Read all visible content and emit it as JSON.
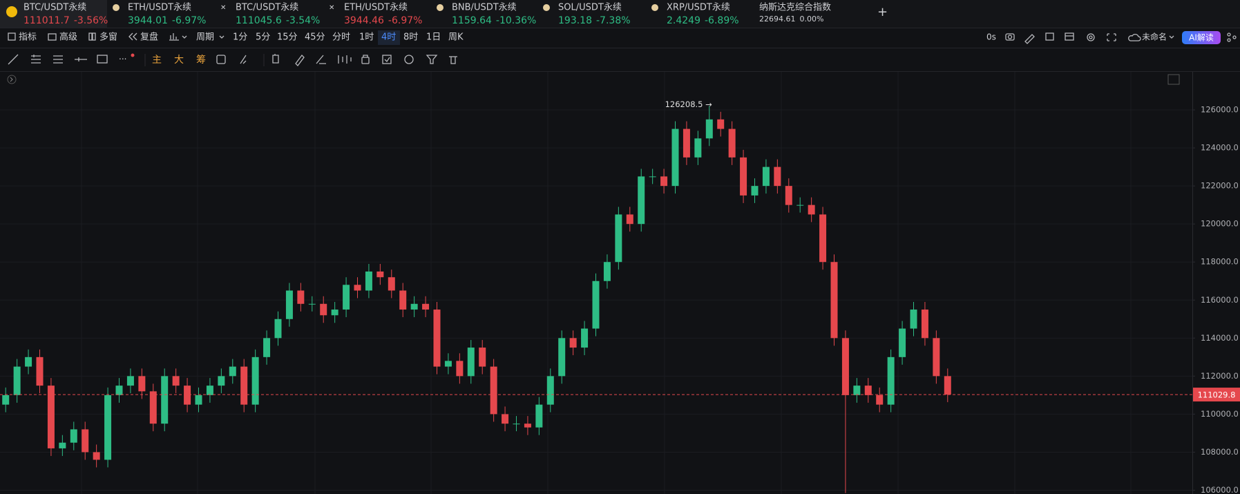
{
  "tabs": [
    {
      "symbol": "BTC/USDT永续",
      "price": "111011.7",
      "change": "-3.56%",
      "color": "#e5484d"
    },
    {
      "symbol": "ETH/USDT永续",
      "price": "3944.01",
      "change": "-6.97%",
      "color": "#2ebd85"
    },
    {
      "symbol": "BTC/USDT永续",
      "price": "111045.6",
      "change": "-3.54%",
      "color": "#2ebd85"
    },
    {
      "symbol": "ETH/USDT永续",
      "price": "3944.46",
      "change": "-6.97%",
      "color": "#e5484d"
    },
    {
      "symbol": "BNB/USDT永续",
      "price": "1159.64",
      "change": "-10.36%",
      "color": "#2ebd85"
    },
    {
      "symbol": "SOL/USDT永续",
      "price": "193.18",
      "change": "-7.38%",
      "color": "#2ebd85"
    },
    {
      "symbol": "XRP/USDT永续",
      "price": "2.4249",
      "change": "-6.89%",
      "color": "#2ebd85"
    },
    {
      "symbol": "纳斯达克综合指数",
      "price": "22694.61",
      "change": "0.00%",
      "color": "#d0d1d5"
    }
  ],
  "toolbar": {
    "items": [
      "指标",
      "高级",
      "多窗",
      "复盘",
      "周期"
    ],
    "intervals": [
      "1分",
      "5分",
      "15分",
      "45分",
      "分时",
      "1时",
      "4时",
      "8时",
      "1日",
      "周K"
    ],
    "active_interval": 6,
    "timer": "0s",
    "layout_name": "未命名",
    "ai_button": "AI解读"
  },
  "draw_tools": [
    "主",
    "大",
    "筹"
  ],
  "chart_data": {
    "type": "candlestick",
    "up_color": "#2ebd85",
    "down_color": "#e5484d",
    "open": [
      110500,
      111000,
      112500,
      113000,
      111500,
      108200,
      108500,
      109200,
      108000,
      107600,
      111000,
      111500,
      112000,
      111200,
      109500,
      112000,
      111500,
      110500,
      111000,
      111500,
      112000,
      112500,
      110500,
      113000,
      114000,
      115000,
      116500,
      115800,
      115800,
      115200,
      115500,
      116800,
      116500,
      117500,
      117200,
      116500,
      115500,
      115800,
      115500,
      112500,
      112800,
      112000,
      113500,
      112500,
      110000,
      109500,
      109500,
      109300,
      110500,
      112000,
      114000,
      113500,
      114500,
      117000,
      118000,
      120500,
      120000,
      122500,
      122500,
      122000,
      125000,
      123500,
      124500,
      125500,
      125000,
      123500,
      121500,
      122000,
      123000,
      122000,
      121000,
      121000,
      120500,
      118000,
      114000,
      111000,
      111500,
      111000,
      110500,
      113000,
      114500,
      115500,
      114000,
      112000
    ],
    "high": [
      111400,
      112900,
      113400,
      113400,
      111900,
      108900,
      109600,
      109600,
      108400,
      111400,
      111900,
      112400,
      112400,
      111600,
      112400,
      112400,
      111900,
      111400,
      111900,
      112400,
      112900,
      112900,
      113400,
      114400,
      115400,
      116900,
      116900,
      116200,
      116200,
      115900,
      117200,
      117200,
      117900,
      117900,
      117600,
      116900,
      116200,
      116200,
      115900,
      113200,
      113200,
      113900,
      113900,
      112900,
      110400,
      109900,
      109900,
      110900,
      112400,
      114400,
      114400,
      114900,
      117400,
      118400,
      120900,
      120900,
      122900,
      122900,
      122900,
      125400,
      125400,
      124900,
      126208.5,
      125900,
      125400,
      123900,
      122400,
      123400,
      123400,
      122400,
      121400,
      121400,
      120900,
      118400,
      114400,
      111900,
      111900,
      111400,
      113400,
      114900,
      115900,
      115900,
      114400,
      112400
    ],
    "low": [
      110100,
      110600,
      112100,
      111100,
      107800,
      107800,
      108100,
      107600,
      107200,
      107200,
      110600,
      111100,
      110800,
      109100,
      109100,
      111100,
      110100,
      110100,
      110600,
      111100,
      111600,
      110100,
      110100,
      112600,
      113600,
      114600,
      115400,
      115400,
      114800,
      114800,
      115100,
      116100,
      116100,
      116800,
      116100,
      115100,
      115100,
      115100,
      112100,
      112100,
      111600,
      111600,
      112100,
      109600,
      109100,
      109100,
      108900,
      108900,
      110100,
      111600,
      113100,
      113100,
      114100,
      116600,
      117600,
      119600,
      119600,
      122100,
      121600,
      121600,
      123100,
      123100,
      124100,
      124600,
      123100,
      121100,
      121100,
      121600,
      121600,
      120600,
      120600,
      120100,
      117600,
      113600,
      105850,
      110600,
      110600,
      110100,
      110100,
      112600,
      114100,
      113600,
      111600,
      110629.8
    ],
    "close": [
      111000,
      112500,
      113000,
      111500,
      108200,
      108500,
      109200,
      108000,
      107600,
      111000,
      111500,
      112000,
      111200,
      109500,
      112000,
      111500,
      110500,
      111000,
      111500,
      112000,
      112500,
      110500,
      113000,
      114000,
      115000,
      116500,
      115800,
      115800,
      115200,
      115500,
      116800,
      116500,
      117500,
      117200,
      116500,
      115500,
      115800,
      115500,
      112500,
      112800,
      112000,
      113500,
      112500,
      110000,
      109500,
      109500,
      109300,
      110500,
      112000,
      114000,
      113500,
      114500,
      117000,
      118000,
      120500,
      120000,
      122500,
      122500,
      122000,
      125000,
      123500,
      124500,
      125500,
      125000,
      123500,
      121500,
      122000,
      123000,
      122000,
      121000,
      121000,
      120500,
      118000,
      114000,
      111000,
      111500,
      111000,
      110500,
      113000,
      114500,
      115500,
      114000,
      112000,
      111029.8
    ],
    "ylim": [
      105800,
      128000
    ],
    "yticks": [
      {
        "value": 106000,
        "label": "106000.0"
      },
      {
        "value": 108000,
        "label": "108000.0"
      },
      {
        "value": 110000,
        "label": "110000.0"
      },
      {
        "value": 112000,
        "label": "112000.0"
      },
      {
        "value": 114000,
        "label": "114000.0"
      },
      {
        "value": 116000,
        "label": "116000.0"
      },
      {
        "value": 118000,
        "label": "118000.0"
      },
      {
        "value": 120000,
        "label": "120000.0"
      },
      {
        "value": 122000,
        "label": "122000.0"
      },
      {
        "value": 124000,
        "label": "124000.0"
      },
      {
        "value": 126000,
        "label": "126000.0"
      }
    ],
    "grid": true,
    "last_price": 111029.8,
    "max_annotation": {
      "index": 62,
      "label": "126208.5 →"
    }
  }
}
